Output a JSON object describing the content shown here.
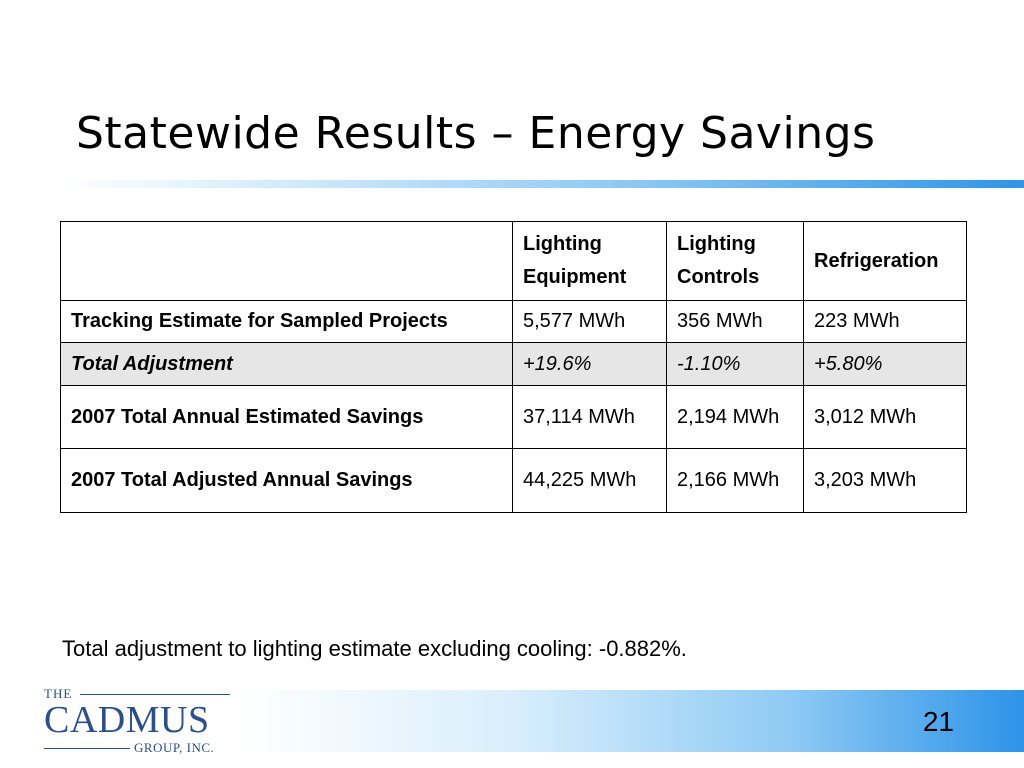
{
  "slide": {
    "title": "Statewide Results – Energy Savings",
    "page_number": "21",
    "note": "Total adjustment to lighting estimate excluding cooling: -0.882%."
  },
  "table": {
    "headers": [
      "",
      "Lighting Equipment",
      "Lighting Controls",
      "Refrigeration"
    ],
    "rows": [
      {
        "label": "Tracking Estimate for Sampled Projects",
        "cells": [
          "5,577 MWh",
          "356 MWh",
          "223 MWh"
        ]
      },
      {
        "label": "Total Adjustment",
        "cells": [
          "+19.6%",
          "-1.10%",
          "+5.80%"
        ]
      },
      {
        "label": "2007 Total Annual Estimated Savings",
        "cells": [
          "37,114 MWh",
          "2,194 MWh",
          "3,012 MWh"
        ]
      },
      {
        "label": "2007 Total Adjusted Annual Savings",
        "cells": [
          "44,225 MWh",
          "2,166 MWh",
          "3,203 MWh"
        ]
      }
    ]
  },
  "logo": {
    "the": "THE",
    "name": "CADMUS",
    "group": "GROUP, INC."
  },
  "colors": {
    "accent_blue": "#2f95e8",
    "logo_blue": "#2b4f87",
    "highlight_row": "#e6e6e6"
  }
}
